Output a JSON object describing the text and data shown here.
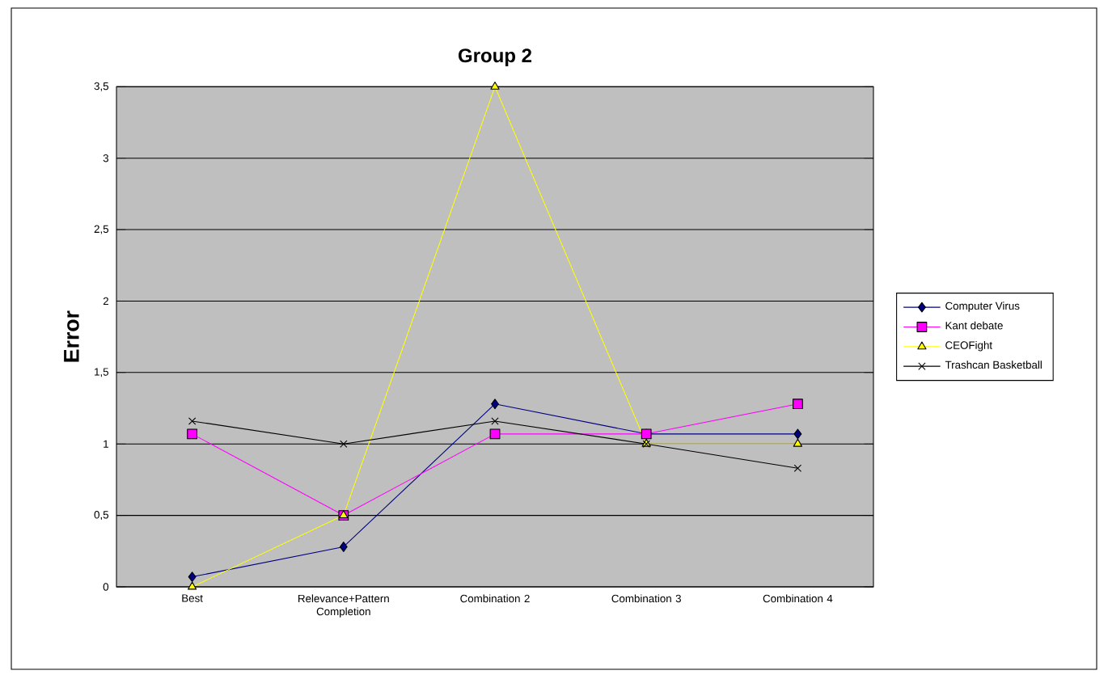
{
  "chart_data": {
    "type": "line",
    "title": "Group 2",
    "ylabel": "Error",
    "categories": [
      "Best",
      "Relevance+Pattern Completion",
      "Combination 2",
      "Combination 3",
      "Combination 4"
    ],
    "series": [
      {
        "name": "Computer Virus",
        "color": "#000080",
        "marker": "diamond",
        "values": [
          0.07,
          0.28,
          1.28,
          1.07,
          1.07
        ]
      },
      {
        "name": "Kant debate",
        "color": "#ff00ff",
        "marker": "square",
        "values": [
          1.07,
          0.5,
          1.07,
          1.07,
          1.28
        ]
      },
      {
        "name": "CEOFight",
        "color": "#ffff00",
        "marker": "triangle",
        "values": [
          0,
          0.5,
          3.5,
          1,
          1
        ]
      },
      {
        "name": "Trashcan Basketball",
        "color": "#000000",
        "marker": "cross",
        "values": [
          1.16,
          1,
          1.16,
          1,
          0.83
        ]
      }
    ],
    "ylim": [
      0,
      3.5
    ],
    "yticks": [
      0,
      {
        "value": 0.5,
        "label": "0,5"
      },
      1,
      {
        "value": 1.5,
        "label": "1,5"
      },
      2,
      {
        "value": 2.5,
        "label": "2,5"
      },
      3,
      {
        "value": 3.5,
        "label": "3,5"
      }
    ],
    "grid": "y",
    "legend": "right"
  }
}
